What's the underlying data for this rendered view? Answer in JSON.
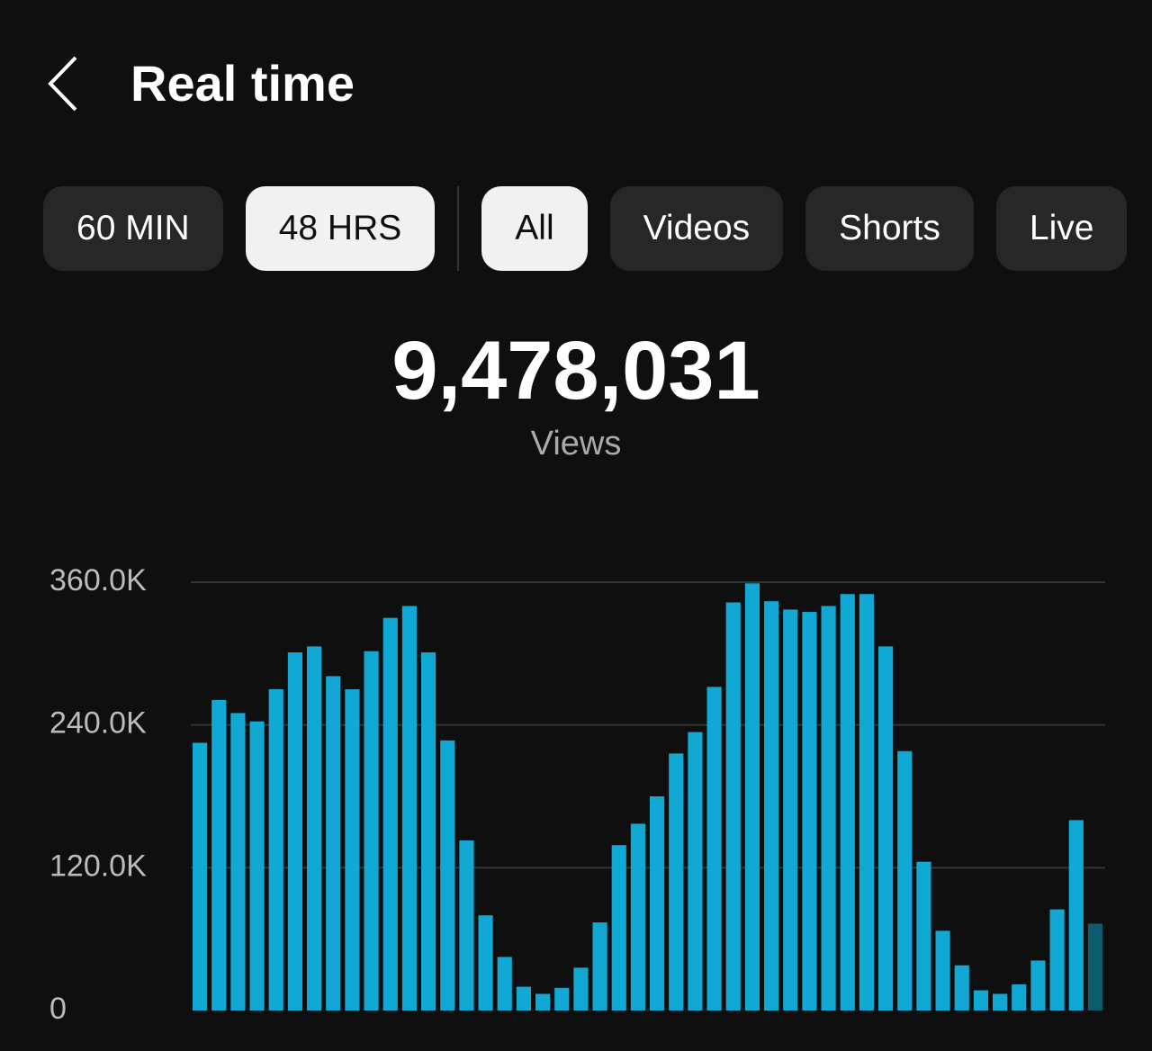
{
  "header": {
    "title": "Real time"
  },
  "filters": {
    "time": [
      {
        "label": "60 MIN",
        "selected": false
      },
      {
        "label": "48 HRS",
        "selected": true
      }
    ],
    "content": [
      {
        "label": "All",
        "selected": true
      },
      {
        "label": "Videos",
        "selected": false
      },
      {
        "label": "Shorts",
        "selected": false
      },
      {
        "label": "Live",
        "selected": false
      }
    ]
  },
  "summary": {
    "total": "9,478,031",
    "label": "Views"
  },
  "chart_data": {
    "type": "bar",
    "values": [
      225000,
      261000,
      250000,
      243000,
      270000,
      301000,
      306000,
      281000,
      270000,
      302000,
      330000,
      340000,
      301000,
      227000,
      143000,
      80000,
      45000,
      20000,
      14000,
      19000,
      36000,
      74000,
      139000,
      157000,
      180000,
      216000,
      234000,
      272000,
      343000,
      359000,
      344000,
      337000,
      335000,
      340000,
      350000,
      350000,
      306000,
      218000,
      125000,
      67000,
      38000,
      17000,
      14000,
      22000,
      42000,
      85000,
      160000,
      73000
    ],
    "color": "#12a8d4",
    "last_color": "#0c5a6c",
    "ylim": [
      0,
      360000
    ],
    "yticks": [
      0,
      {
        "value": 120000,
        "label": "120.0K"
      },
      {
        "value": 240000,
        "label": "240.0K"
      },
      {
        "value": 360000,
        "label": "360.0K"
      }
    ],
    "grid": true
  }
}
